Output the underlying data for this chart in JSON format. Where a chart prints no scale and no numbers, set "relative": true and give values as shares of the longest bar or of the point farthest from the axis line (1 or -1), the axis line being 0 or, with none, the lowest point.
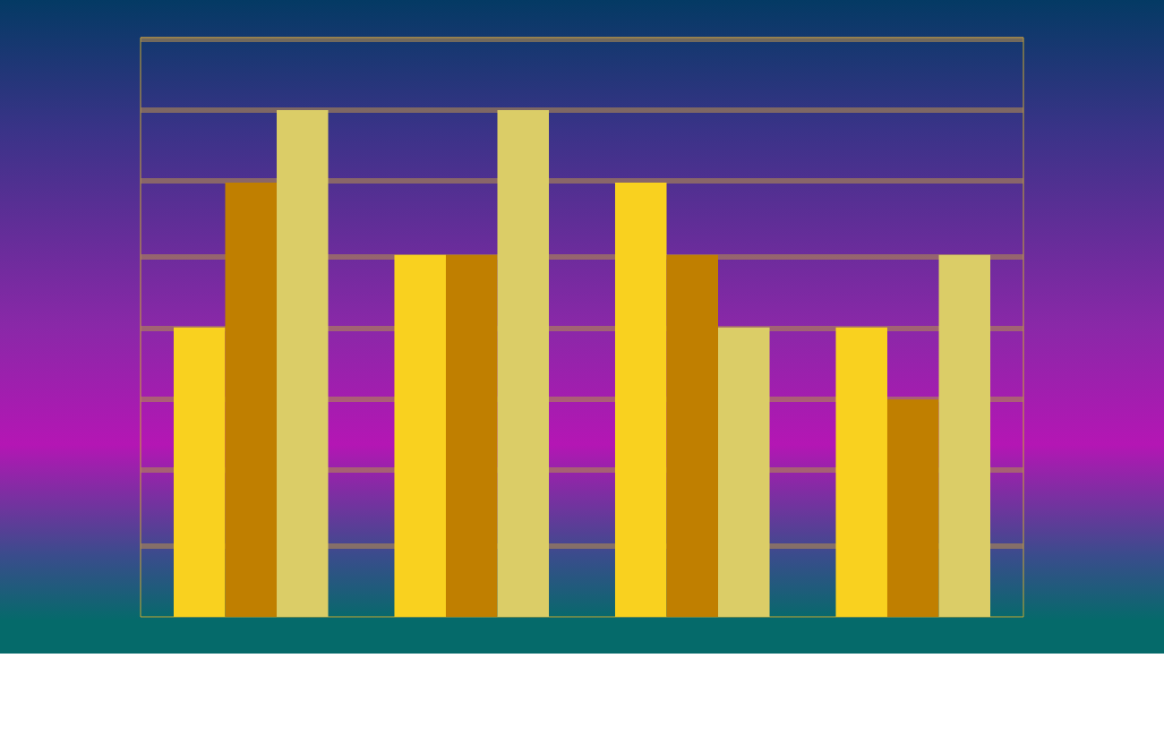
{
  "chart_data": {
    "type": "bar",
    "relative": true,
    "categories": [
      null,
      null,
      null,
      null
    ],
    "series": [
      {
        "color": "#f9d11f",
        "values": [
          0.571,
          0.714,
          0.857,
          0.571
        ]
      },
      {
        "color": "#c07f00",
        "values": [
          0.857,
          0.714,
          0.714,
          0.429
        ]
      },
      {
        "color": "#dbcd67",
        "values": [
          1,
          1,
          0.571,
          0.714
        ]
      }
    ],
    "ref_lines": [
      {
        "axis": "y",
        "value": 0.143,
        "color": "#b08a50"
      },
      {
        "axis": "y",
        "value": 0.286,
        "color": "#b08a50"
      },
      {
        "axis": "y",
        "value": 0.429,
        "color": "#b08a50"
      },
      {
        "axis": "y",
        "value": 0.571,
        "color": "#b08a50"
      },
      {
        "axis": "y",
        "value": 0.714,
        "color": "#b08a50"
      },
      {
        "axis": "y",
        "value": 0.857,
        "color": "#b08a50"
      },
      {
        "axis": "y",
        "value": 1,
        "color": "#b08a50"
      },
      {
        "axis": "y",
        "value": 1.143,
        "color": "#b08a50"
      }
    ]
  }
}
